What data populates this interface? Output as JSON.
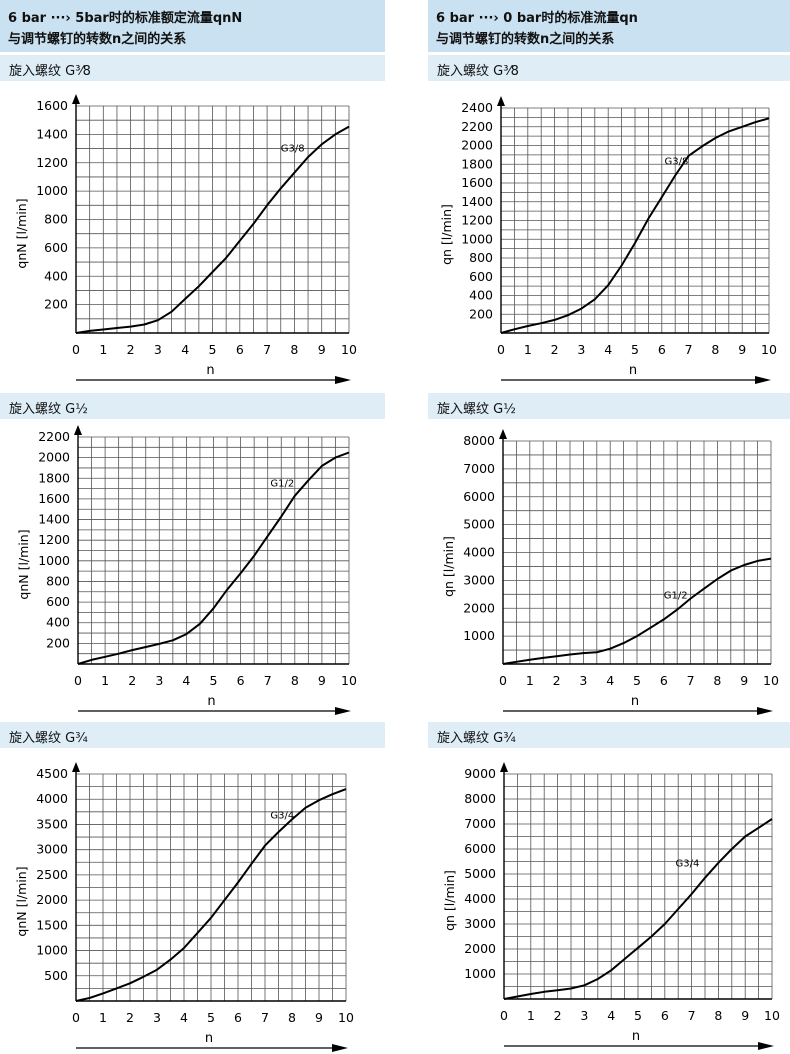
{
  "headers": {
    "left_line1": "6 bar ···› 5bar时的标准额定流量qnN",
    "left_line2": "与调节螺钉的转数n之间的关系",
    "right_line1": "6 bar ···› 0 bar时的标准流量qn",
    "right_line2": "与调节螺钉的转数n之间的关系"
  },
  "sections": {
    "g38": "旋入螺纹 G³⁄8",
    "g12": "旋入螺纹 G½",
    "g34": "旋入螺纹 G¾"
  },
  "chart_data": [
    {
      "type": "line",
      "title": "qnN G3/8",
      "xlabel": "n",
      "ylabel": "qnN [l/min]",
      "xlim": [
        0,
        10
      ],
      "ylim": [
        0,
        1600
      ],
      "xticks": [
        "0",
        "1",
        "2",
        "3",
        "4",
        "5",
        "6",
        "7",
        "8",
        "9",
        "10"
      ],
      "yticks": [
        "200",
        "400",
        "600",
        "800",
        "1000",
        "1200",
        "1400",
        "1600"
      ],
      "curve_label": "G3/8",
      "label_at": [
        7.5,
        1280
      ],
      "x": [
        0,
        0.5,
        1,
        1.5,
        2,
        2.5,
        3,
        3.5,
        4,
        4.5,
        5,
        5.5,
        6,
        6.5,
        7,
        7.5,
        8,
        8.5,
        9,
        9.5,
        10
      ],
      "y": [
        0,
        15,
        25,
        35,
        45,
        60,
        90,
        150,
        240,
        330,
        430,
        530,
        650,
        770,
        900,
        1020,
        1130,
        1240,
        1330,
        1400,
        1455
      ]
    },
    {
      "type": "line",
      "title": "qn G3/8",
      "xlabel": "n",
      "ylabel": "qn [l/min]",
      "xlim": [
        0,
        10
      ],
      "ylim": [
        0,
        2400
      ],
      "xticks": [
        "0",
        "1",
        "2",
        "3",
        "4",
        "5",
        "6",
        "7",
        "8",
        "9",
        "10"
      ],
      "yticks": [
        "200",
        "400",
        "600",
        "800",
        "1000",
        "1200",
        "1400",
        "1600",
        "1800",
        "2000",
        "2200",
        "2400"
      ],
      "curve_label": "G3/8",
      "label_at": [
        6.1,
        1800
      ],
      "x": [
        0,
        0.5,
        1,
        1.5,
        2,
        2.5,
        3,
        3.5,
        4,
        4.5,
        5,
        5.5,
        6,
        6.5,
        7,
        7.5,
        8,
        8.5,
        9,
        9.5,
        10
      ],
      "y": [
        0,
        40,
        75,
        105,
        140,
        190,
        260,
        360,
        510,
        720,
        960,
        1220,
        1450,
        1680,
        1890,
        1990,
        2080,
        2150,
        2200,
        2250,
        2290
      ]
    },
    {
      "type": "line",
      "title": "qnN G1/2",
      "xlabel": "n",
      "ylabel": "qnN [l/min]",
      "xlim": [
        0,
        10
      ],
      "ylim": [
        0,
        2200
      ],
      "xticks": [
        "0",
        "1",
        "2",
        "3",
        "4",
        "5",
        "6",
        "7",
        "8",
        "9",
        "10"
      ],
      "yticks": [
        "200",
        "400",
        "600",
        "800",
        "1000",
        "1200",
        "1400",
        "1600",
        "1800",
        "2000",
        "2200"
      ],
      "curve_label": "G1/2",
      "label_at": [
        7.1,
        1720
      ],
      "x": [
        0,
        0.5,
        1,
        1.5,
        2,
        2.5,
        3,
        3.5,
        4,
        4.5,
        5,
        5.5,
        6,
        6.5,
        7,
        7.5,
        8,
        8.5,
        9,
        9.5,
        10
      ],
      "y": [
        0,
        40,
        70,
        100,
        135,
        165,
        195,
        230,
        290,
        390,
        540,
        720,
        880,
        1050,
        1240,
        1430,
        1630,
        1780,
        1920,
        2000,
        2050
      ]
    },
    {
      "type": "line",
      "title": "qn G1/2",
      "xlabel": "n",
      "ylabel": "qn [l/min]",
      "xlim": [
        0,
        10
      ],
      "ylim": [
        0,
        8000
      ],
      "xticks": [
        "0",
        "1",
        "2",
        "3",
        "4",
        "5",
        "6",
        "7",
        "8",
        "9",
        "10"
      ],
      "yticks": [
        "1000",
        "2000",
        "3000",
        "4000",
        "5000",
        "6000",
        "7000",
        "8000"
      ],
      "curve_label": "G1/2",
      "label_at": [
        6.0,
        2350
      ],
      "x": [
        0,
        0.5,
        1,
        1.5,
        2,
        2.5,
        3,
        3.5,
        4,
        4.5,
        5,
        5.5,
        6,
        6.5,
        7,
        7.5,
        8,
        8.5,
        9,
        9.5,
        10
      ],
      "y": [
        0,
        80,
        150,
        220,
        280,
        340,
        390,
        420,
        550,
        750,
        1000,
        1300,
        1600,
        1950,
        2350,
        2700,
        3050,
        3350,
        3550,
        3700,
        3780
      ]
    },
    {
      "type": "line",
      "title": "qnN G3/4",
      "xlabel": "n",
      "ylabel": "qnN [l/min]",
      "xlim": [
        0,
        10
      ],
      "ylim": [
        0,
        4500
      ],
      "xticks": [
        "0",
        "1",
        "2",
        "3",
        "4",
        "5",
        "6",
        "7",
        "8",
        "9",
        "10"
      ],
      "yticks": [
        "500",
        "1000",
        "1500",
        "2000",
        "2500",
        "3000",
        "3500",
        "4000",
        "4500"
      ],
      "curve_label": "G3/4",
      "label_at": [
        7.2,
        3620
      ],
      "x": [
        0,
        0.5,
        1,
        1.5,
        2,
        2.5,
        3,
        3.5,
        4,
        4.5,
        5,
        5.5,
        6,
        6.5,
        7,
        7.5,
        8,
        8.5,
        9,
        9.5,
        10
      ],
      "y": [
        0,
        60,
        150,
        250,
        350,
        480,
        620,
        820,
        1050,
        1350,
        1650,
        2000,
        2350,
        2720,
        3080,
        3350,
        3600,
        3830,
        3980,
        4100,
        4200
      ]
    },
    {
      "type": "line",
      "title": "qn G3/4",
      "xlabel": "n",
      "ylabel": "qn [l/min]",
      "xlim": [
        0,
        10
      ],
      "ylim": [
        0,
        9000
      ],
      "xticks": [
        "0",
        "1",
        "2",
        "3",
        "4",
        "5",
        "6",
        "7",
        "8",
        "9",
        "10"
      ],
      "yticks": [
        "1000",
        "2000",
        "3000",
        "4000",
        "5000",
        "6000",
        "7000",
        "8000",
        "9000"
      ],
      "curve_label": "G3/4",
      "label_at": [
        6.4,
        5300
      ],
      "x": [
        0,
        0.5,
        1,
        1.5,
        2,
        2.5,
        3,
        3.5,
        4,
        4.5,
        5,
        5.5,
        6,
        6.5,
        7,
        7.5,
        8,
        8.5,
        9,
        9.5,
        10
      ],
      "y": [
        0,
        100,
        200,
        290,
        350,
        420,
        550,
        800,
        1150,
        1600,
        2050,
        2500,
        3000,
        3600,
        4200,
        4850,
        5450,
        6000,
        6500,
        6850,
        7200
      ]
    }
  ]
}
